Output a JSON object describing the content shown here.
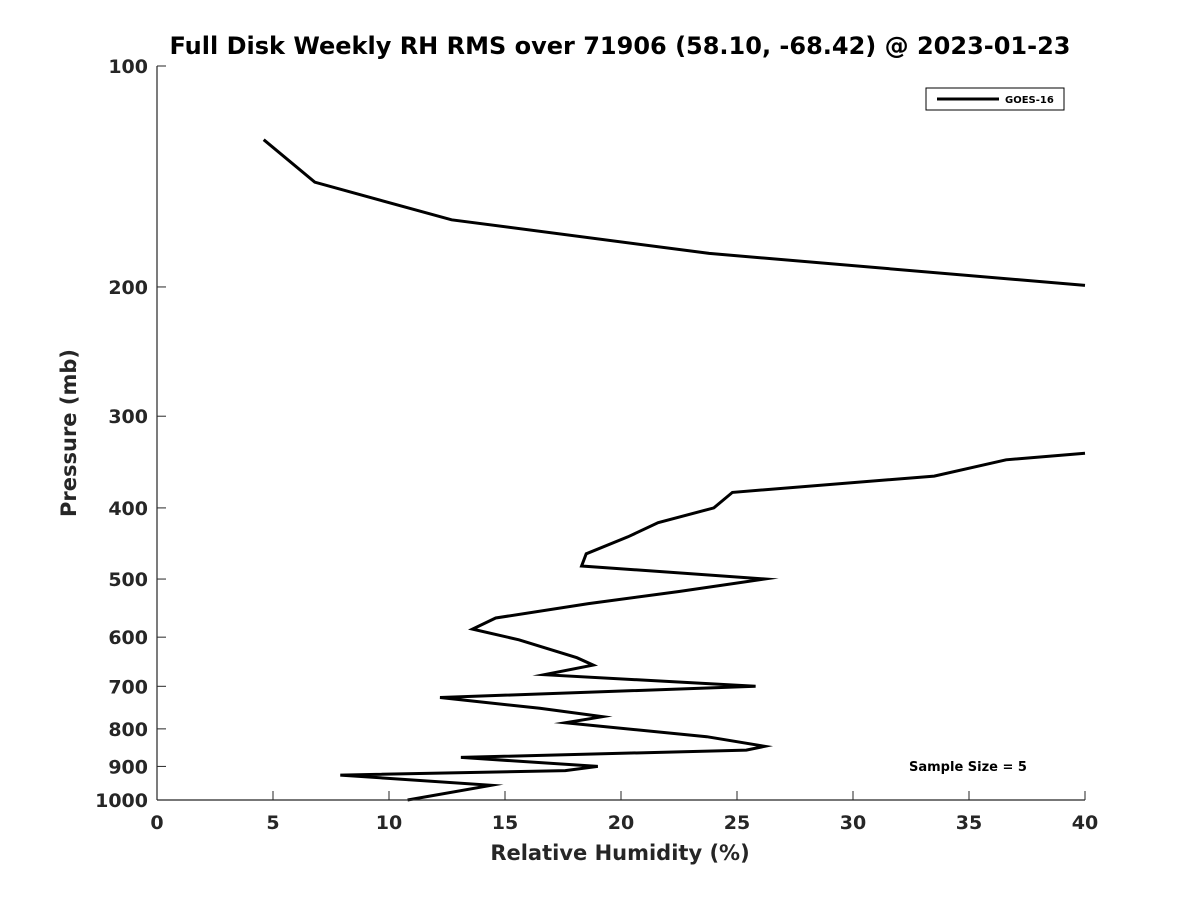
{
  "chart_data": {
    "type": "line",
    "title": "Full Disk Weekly RH RMS over 71906 (58.10, -68.42) @ 2023-01-23",
    "xlabel": "Relative Humidity (%)",
    "ylabel": "Pressure (mb)",
    "xlim": [
      0,
      40
    ],
    "ylim": [
      100,
      1000
    ],
    "y_scale": "log",
    "y_reversed": true,
    "x_ticks": [
      0,
      5,
      10,
      15,
      20,
      25,
      30,
      35,
      40
    ],
    "y_ticks": [
      100,
      200,
      300,
      400,
      500,
      600,
      700,
      800,
      900,
      1000
    ],
    "grid": false,
    "legend_position": "top-right",
    "annotation": "Sample Size = 5",
    "series": [
      {
        "name": "GOES-16",
        "color": "#000000",
        "segments": [
          [
            {
              "x": 4.6,
              "y": 126
            },
            {
              "x": 6.8,
              "y": 144
            },
            {
              "x": 12.7,
              "y": 162
            },
            {
              "x": 23.8,
              "y": 180
            },
            {
              "x": 40.0,
              "y": 199
            }
          ],
          [
            {
              "x": 40.0,
              "y": 337
            },
            {
              "x": 36.6,
              "y": 344
            },
            {
              "x": 33.5,
              "y": 362
            },
            {
              "x": 24.8,
              "y": 381
            },
            {
              "x": 24.0,
              "y": 400
            },
            {
              "x": 21.6,
              "y": 419
            },
            {
              "x": 20.3,
              "y": 438
            },
            {
              "x": 18.5,
              "y": 462
            },
            {
              "x": 18.3,
              "y": 480
            },
            {
              "x": 26.2,
              "y": 500
            },
            {
              "x": 22.5,
              "y": 520
            },
            {
              "x": 18.6,
              "y": 540
            },
            {
              "x": 14.6,
              "y": 565
            },
            {
              "x": 13.6,
              "y": 585
            },
            {
              "x": 15.6,
              "y": 605
            },
            {
              "x": 18.1,
              "y": 640
            },
            {
              "x": 18.8,
              "y": 655
            },
            {
              "x": 16.7,
              "y": 675
            },
            {
              "x": 25.8,
              "y": 700
            },
            {
              "x": 12.2,
              "y": 725
            },
            {
              "x": 16.5,
              "y": 750
            },
            {
              "x": 19.2,
              "y": 770
            },
            {
              "x": 17.6,
              "y": 785
            },
            {
              "x": 23.7,
              "y": 820
            },
            {
              "x": 26.2,
              "y": 845
            },
            {
              "x": 25.4,
              "y": 855
            },
            {
              "x": 13.1,
              "y": 875
            },
            {
              "x": 19.0,
              "y": 900
            },
            {
              "x": 17.6,
              "y": 912
            },
            {
              "x": 7.9,
              "y": 925
            },
            {
              "x": 14.4,
              "y": 955
            },
            {
              "x": 10.8,
              "y": 1000
            }
          ]
        ]
      }
    ]
  }
}
